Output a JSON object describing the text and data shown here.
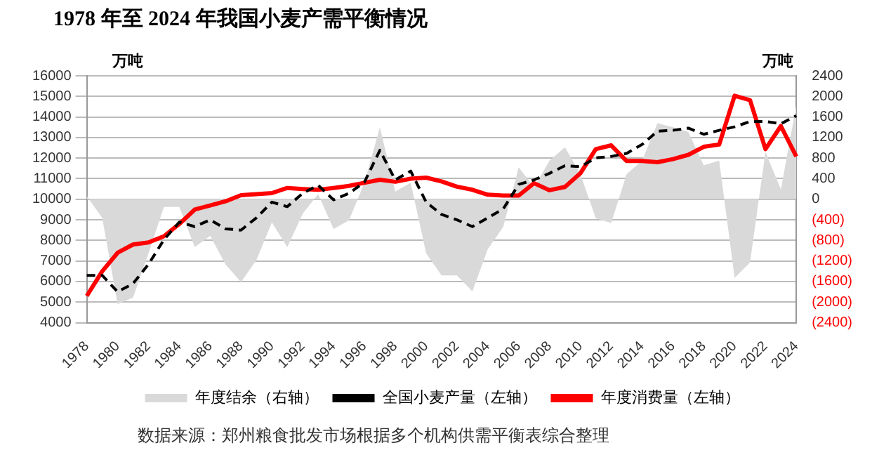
{
  "chart_data": {
    "type": "line",
    "title": "1978 年至 2024 年我国小麦产需平衡情况",
    "ylabel": "万吨",
    "y2label": "万吨",
    "annotations": [
      "数据来源：郑州粮食批发市场根据多个机构供需平衡表综合整理"
    ],
    "categories": [
      "1978",
      null,
      "1980",
      null,
      "1982",
      null,
      "1984",
      null,
      "1986",
      null,
      "1988",
      null,
      "1990",
      null,
      "1992",
      null,
      "1994",
      null,
      "1996",
      null,
      "1998",
      null,
      "2000",
      null,
      "2002",
      null,
      "2004",
      null,
      "2006",
      null,
      "2008",
      null,
      "2010",
      null,
      "2012",
      null,
      "2014",
      null,
      "2016",
      null,
      "2018",
      null,
      "2020",
      null,
      "2022",
      null,
      "2024"
    ],
    "series": [
      {
        "name": "年度结余（右轴）",
        "type": "area",
        "axis": "y2",
        "color": "#d9d9d9",
        "values": [
          60,
          -360,
          -2040,
          -1910,
          -1050,
          -150,
          -150,
          -930,
          -710,
          -1270,
          -1610,
          -1180,
          -450,
          -930,
          -280,
          100,
          -580,
          -410,
          320,
          1400,
          150,
          320,
          -1050,
          -1480,
          -1480,
          -1790,
          -970,
          -540,
          620,
          230,
          750,
          1010,
          490,
          -370,
          -460,
          490,
          750,
          1480,
          1400,
          1310,
          660,
          750,
          -1530,
          -1230,
          920,
          190,
          1830
        ]
      },
      {
        "name": "全国小麦产量（左轴）",
        "type": "line",
        "color": "#000000",
        "line_style": "dashed",
        "values": [
          6300,
          6300,
          5500,
          5900,
          6840,
          8030,
          8890,
          8670,
          9000,
          8560,
          8500,
          9100,
          9860,
          9640,
          10290,
          10680,
          9970,
          10290,
          10830,
          12380,
          10940,
          11370,
          9860,
          9260,
          9000,
          8670,
          9100,
          9530,
          10720,
          10940,
          11260,
          11630,
          11580,
          12010,
          12080,
          12230,
          12660,
          13310,
          13350,
          13460,
          13160,
          13350,
          13520,
          13780,
          13780,
          13670,
          14060
        ]
      },
      {
        "name": "年度消费量（左轴）",
        "type": "line",
        "color": "#ff0000",
        "line_style": "solid",
        "values": [
          5300,
          6500,
          7400,
          7800,
          7900,
          8200,
          8800,
          9500,
          9700,
          9900,
          10200,
          10250,
          10300,
          10550,
          10500,
          10460,
          10550,
          10650,
          10800,
          10950,
          10850,
          11000,
          11050,
          10870,
          10610,
          10460,
          10220,
          10180,
          10180,
          10780,
          10440,
          10600,
          11260,
          12440,
          12620,
          11860,
          11860,
          11800,
          11950,
          12160,
          12550,
          12660,
          15030,
          14820,
          12440,
          13560,
          12080
        ]
      }
    ],
    "ylim": [
      4000,
      16000
    ],
    "yticks": [
      4000,
      5000,
      6000,
      7000,
      8000,
      9000,
      10000,
      11000,
      12000,
      13000,
      14000,
      15000,
      16000
    ],
    "y2lim": [
      -2400,
      2400
    ],
    "y2ticks": [
      {
        "value": -2400,
        "label": "(2400)"
      },
      {
        "value": -2000,
        "label": "(2000)"
      },
      {
        "value": -1600,
        "label": "(1600)"
      },
      {
        "value": -1200,
        "label": "(1200)"
      },
      {
        "value": -800,
        "label": "(800)"
      },
      {
        "value": -400,
        "label": "(400)"
      },
      0,
      400,
      800,
      1200,
      1600,
      2000,
      2400
    ],
    "grid": "y",
    "legend": "bottom",
    "marker": "none"
  }
}
